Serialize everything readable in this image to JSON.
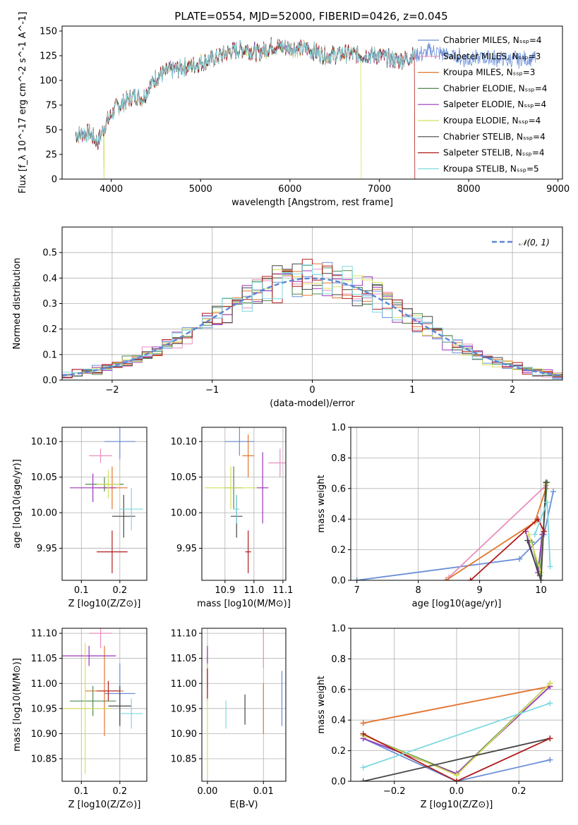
{
  "title": "PLATE=0554, MJD=52000, FIBERID=0426, z=0.045",
  "palette": [
    "#6a8fd8",
    "#e88fbf",
    "#e2762c",
    "#4f8a4f",
    "#9b35b8",
    "#d4e05a",
    "#444444",
    "#b01b1b",
    "#7fd8e0"
  ],
  "chart_data": [
    {
      "id": "spectrum",
      "type": "line",
      "xlabel": "wavelength [Angstrom, rest frame]",
      "ylabel": "Flux [f_λ 10^-17 erg cm^-2 s^-1 A^-1]",
      "xlim": [
        3450,
        9050
      ],
      "ylim": [
        0,
        155
      ],
      "xticks": [
        4000,
        5000,
        6000,
        7000,
        8000,
        9000
      ],
      "yticks": [
        0,
        25,
        50,
        75,
        100,
        125,
        150
      ],
      "grid": false,
      "legend_position": "top-right",
      "legend": [
        "Chabrier MILES, N_SSP=4",
        "Salpeter MILES, N_SSP=3",
        "Kroupa MILES, N_SSP=3",
        "Chabrier ELODIE, N_SSP=4",
        "Salpeter ELODIE, N_SSP=4",
        "Kroupa ELODIE, N_SSP=4",
        "Chabrier STELIB, N_SSP=4",
        "Salpeter STELIB, N_SSP=4",
        "Kroupa STELIB, N_SSP=5"
      ],
      "continuum": {
        "x": [
          3600,
          3750,
          3850,
          3950,
          4050,
          4150,
          4250,
          4350,
          4500,
          4650,
          4850,
          5000,
          5200,
          5350,
          5500,
          5650,
          5800,
          6000,
          6200,
          6400,
          6600,
          6800,
          7000,
          7200,
          7300,
          7400,
          7600,
          7800,
          8000,
          8200,
          8400,
          8600,
          8750
        ],
        "y": [
          45,
          47,
          38,
          58,
          72,
          78,
          85,
          82,
          103,
          110,
          114,
          118,
          124,
          130,
          132,
          128,
          135,
          133,
          132,
          125,
          127,
          126,
          125,
          120,
          122,
          125,
          130,
          125,
          122,
          123,
          121,
          122,
          122
        ]
      },
      "series_ends": [
        8750,
        7400,
        7400,
        7400,
        7400,
        6800,
        7400,
        7400,
        7400
      ],
      "series_drops": [
        null,
        null,
        null,
        null,
        null,
        [
          3920,
          6800
        ],
        null,
        [
          7400
        ],
        null
      ]
    },
    {
      "id": "residuals",
      "type": "histogram",
      "xlabel": "(data-model)/error",
      "ylabel": "Normed distribution",
      "xlim": [
        -2.5,
        2.5
      ],
      "ylim": [
        0,
        0.6
      ],
      "xticks": [
        -2,
        -1,
        0,
        1,
        2
      ],
      "yticks": [
        0.0,
        0.1,
        0.2,
        0.3,
        0.4,
        0.5
      ],
      "grid": true,
      "legend": [
        "N(0,1)"
      ],
      "bin_width": 0.1
    },
    {
      "id": "age_vs_Z",
      "type": "errorbar",
      "xlabel": "Z [log10(Z/Z⊙)]",
      "ylabel": "age  [log10(age/yr)]",
      "xlim": [
        0.05,
        0.27
      ],
      "ylim": [
        9.905,
        10.12
      ],
      "xticks": [
        0.1,
        0.2
      ],
      "yticks": [
        9.95,
        10.0,
        10.05,
        10.1
      ],
      "grid": true,
      "points": [
        [
          0.2,
          10.1,
          0.04,
          0.025
        ],
        [
          0.15,
          10.08,
          0.03,
          0.01
        ],
        [
          0.18,
          10.035,
          0.04,
          0.03
        ],
        [
          0.16,
          10.04,
          0.05,
          0.01
        ],
        [
          0.13,
          10.035,
          0.06,
          0.02
        ],
        [
          0.17,
          10.04,
          0.03,
          0.02
        ],
        [
          0.21,
          9.995,
          0.03,
          0.03
        ],
        [
          0.18,
          9.945,
          0.04,
          0.03
        ],
        [
          0.23,
          10.005,
          0.03,
          0.03
        ]
      ]
    },
    {
      "id": "age_vs_mass",
      "type": "errorbar",
      "xlabel": "mass [log10(M/M⊙)]",
      "ylabel": "",
      "xlim": [
        10.82,
        11.11
      ],
      "ylim": [
        9.905,
        10.12
      ],
      "xticks": [
        10.9,
        11.0,
        11.1
      ],
      "yticks": [
        9.95,
        10.0,
        10.05,
        10.1
      ],
      "grid": true,
      "points": [
        [
          10.95,
          10.1,
          0.05,
          0.02
        ],
        [
          11.09,
          10.07,
          0.04,
          0.02
        ],
        [
          10.98,
          10.08,
          0.02,
          0.03
        ],
        [
          10.93,
          10.035,
          0.03,
          0.03
        ],
        [
          11.03,
          10.035,
          0.02,
          0.05
        ],
        [
          10.92,
          10.035,
          0.09,
          0.03
        ],
        [
          10.94,
          9.995,
          0.02,
          0.03
        ],
        [
          10.98,
          9.945,
          0.01,
          0.03
        ],
        [
          10.94,
          10.005,
          0.01,
          0.02
        ]
      ]
    },
    {
      "id": "weight_vs_age",
      "type": "line",
      "xlabel": "age  [log10(age/yr)]",
      "ylabel": "mass weight",
      "xlim": [
        6.9,
        10.35
      ],
      "ylim": [
        0,
        1.0
      ],
      "xticks": [
        7,
        8,
        9,
        10
      ],
      "yticks": [
        0.0,
        0.2,
        0.4,
        0.6,
        0.8,
        1.0
      ],
      "grid": true,
      "series": [
        {
          "x": [
            7.0,
            9.65,
            10.05,
            10.2
          ],
          "y": [
            0.0,
            0.14,
            0.3,
            0.58
          ]
        },
        {
          "x": [
            8.5,
            10.08
          ],
          "y": [
            0.02,
            0.62
          ]
        },
        {
          "x": [
            8.45,
            9.9,
            10.08
          ],
          "y": [
            0.0,
            0.38,
            0.6
          ]
        },
        {
          "x": [
            9.85,
            9.98,
            10.1
          ],
          "y": [
            0.25,
            0.03,
            0.64
          ]
        },
        {
          "x": [
            9.75,
            9.95,
            10.02
          ],
          "y": [
            0.32,
            0.05,
            0.3
          ]
        },
        {
          "x": [
            9.8,
            10.0,
            10.08
          ],
          "y": [
            0.3,
            0.05,
            0.63
          ]
        },
        {
          "x": [
            9.78,
            10.0,
            10.08
          ],
          "y": [
            0.26,
            0.0,
            0.64
          ]
        },
        {
          "x": [
            8.85,
            9.95,
            10.05
          ],
          "y": [
            0.0,
            0.4,
            0.32
          ]
        },
        {
          "x": [
            9.9,
            10.1,
            10.15
          ],
          "y": [
            0.3,
            0.51,
            0.09
          ]
        }
      ]
    },
    {
      "id": "mass_vs_Z",
      "type": "errorbar",
      "xlabel": "Z [log10(Z/Z⊙)]",
      "ylabel": "mass [log10(M/M⊙)]",
      "xlim": [
        0.05,
        0.27
      ],
      "ylim": [
        10.805,
        11.11
      ],
      "xticks": [
        0.1,
        0.2
      ],
      "yticks": [
        10.85,
        10.9,
        10.95,
        11.0,
        11.05,
        11.1
      ],
      "grid": true,
      "points": [
        [
          0.2,
          10.98,
          0.04,
          0.06
        ],
        [
          0.15,
          11.1,
          0.03,
          0.03
        ],
        [
          0.16,
          10.985,
          0.05,
          0.09
        ],
        [
          0.13,
          10.965,
          0.06,
          0.03
        ],
        [
          0.12,
          11.055,
          0.07,
          0.02
        ],
        [
          0.11,
          10.95,
          0.07,
          0.13
        ],
        [
          0.2,
          10.955,
          0.03,
          0.04
        ],
        [
          0.17,
          10.985,
          0.03,
          0.02
        ],
        [
          0.23,
          10.94,
          0.03,
          0.03
        ]
      ]
    },
    {
      "id": "mass_vs_ebv",
      "type": "errorbar",
      "xlabel": "E(B-V)",
      "ylabel": "",
      "xlim": [
        -0.001,
        0.014
      ],
      "ylim": [
        10.805,
        11.11
      ],
      "xticks": [
        0.0,
        0.01
      ],
      "yticks": [
        10.85,
        10.9,
        10.95,
        11.0,
        11.05,
        11.1
      ],
      "grid": true,
      "points": [
        [
          0.0133,
          10.97,
          0.0,
          0.055
        ],
        [
          0.01,
          11.07,
          0.0,
          0.04
        ],
        [
          0.01,
          10.95,
          0.0,
          0.05
        ],
        [
          0.0,
          11.03,
          0.0,
          0.04
        ],
        [
          0.0,
          11.02,
          0.0,
          0.055
        ],
        [
          0.0,
          10.93,
          0.0,
          0.11
        ],
        [
          0.0067,
          10.948,
          0.0,
          0.03
        ],
        [
          0.0,
          11.0,
          0.0,
          0.03
        ],
        [
          0.0033,
          10.938,
          0.0,
          0.028
        ]
      ]
    },
    {
      "id": "weight_vs_Z",
      "type": "line",
      "xlabel": "Z [log10(Z/Z⊙)]",
      "ylabel": "mass weight",
      "xlim": [
        -0.34,
        0.34
      ],
      "ylim": [
        0,
        1.0
      ],
      "xticks": [
        -0.2,
        0.0,
        0.2
      ],
      "yticks": [
        0.0,
        0.2,
        0.4,
        0.6,
        0.8,
        1.0
      ],
      "grid": true,
      "series": [
        {
          "x": [
            -0.3,
            0.0,
            0.3
          ],
          "y": [
            0.28,
            0.0,
            0.14
          ]
        },
        {
          "x": [
            -0.3,
            0.3
          ],
          "y": [
            0.38,
            0.62
          ]
        },
        {
          "x": [
            -0.3,
            0.3
          ],
          "y": [
            0.38,
            0.62
          ]
        },
        {
          "x": [
            -0.3,
            0.0,
            0.3
          ],
          "y": [
            0.3,
            0.05,
            0.64
          ]
        },
        {
          "x": [
            -0.3,
            0.0,
            0.3
          ],
          "y": [
            0.28,
            0.05,
            0.62
          ]
        },
        {
          "x": [
            -0.3,
            0.0,
            0.3
          ],
          "y": [
            0.3,
            0.04,
            0.64
          ]
        },
        {
          "x": [
            -0.3,
            0.3
          ],
          "y": [
            0.0,
            0.28
          ]
        },
        {
          "x": [
            -0.3,
            0.0,
            0.3
          ],
          "y": [
            0.31,
            0.0,
            0.28
          ]
        },
        {
          "x": [
            -0.3,
            0.3
          ],
          "y": [
            0.09,
            0.51
          ]
        }
      ]
    }
  ]
}
